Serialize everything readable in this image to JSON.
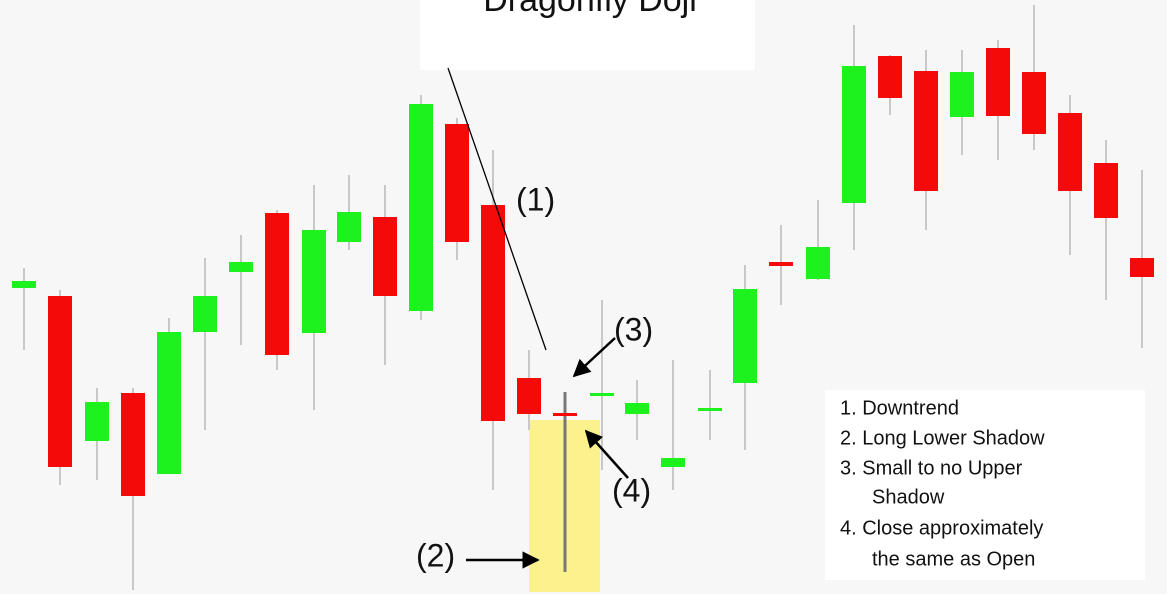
{
  "title": "Dragonfly Doji",
  "labels": [
    "(1)",
    "(2)",
    "(3)",
    "(4)"
  ],
  "legend": [
    "1. Downtrend",
    "2. Long Lower Shadow",
    "3. Small to no Upper",
    "Shadow",
    "4. Close approximately",
    "the same as Open"
  ]
}
